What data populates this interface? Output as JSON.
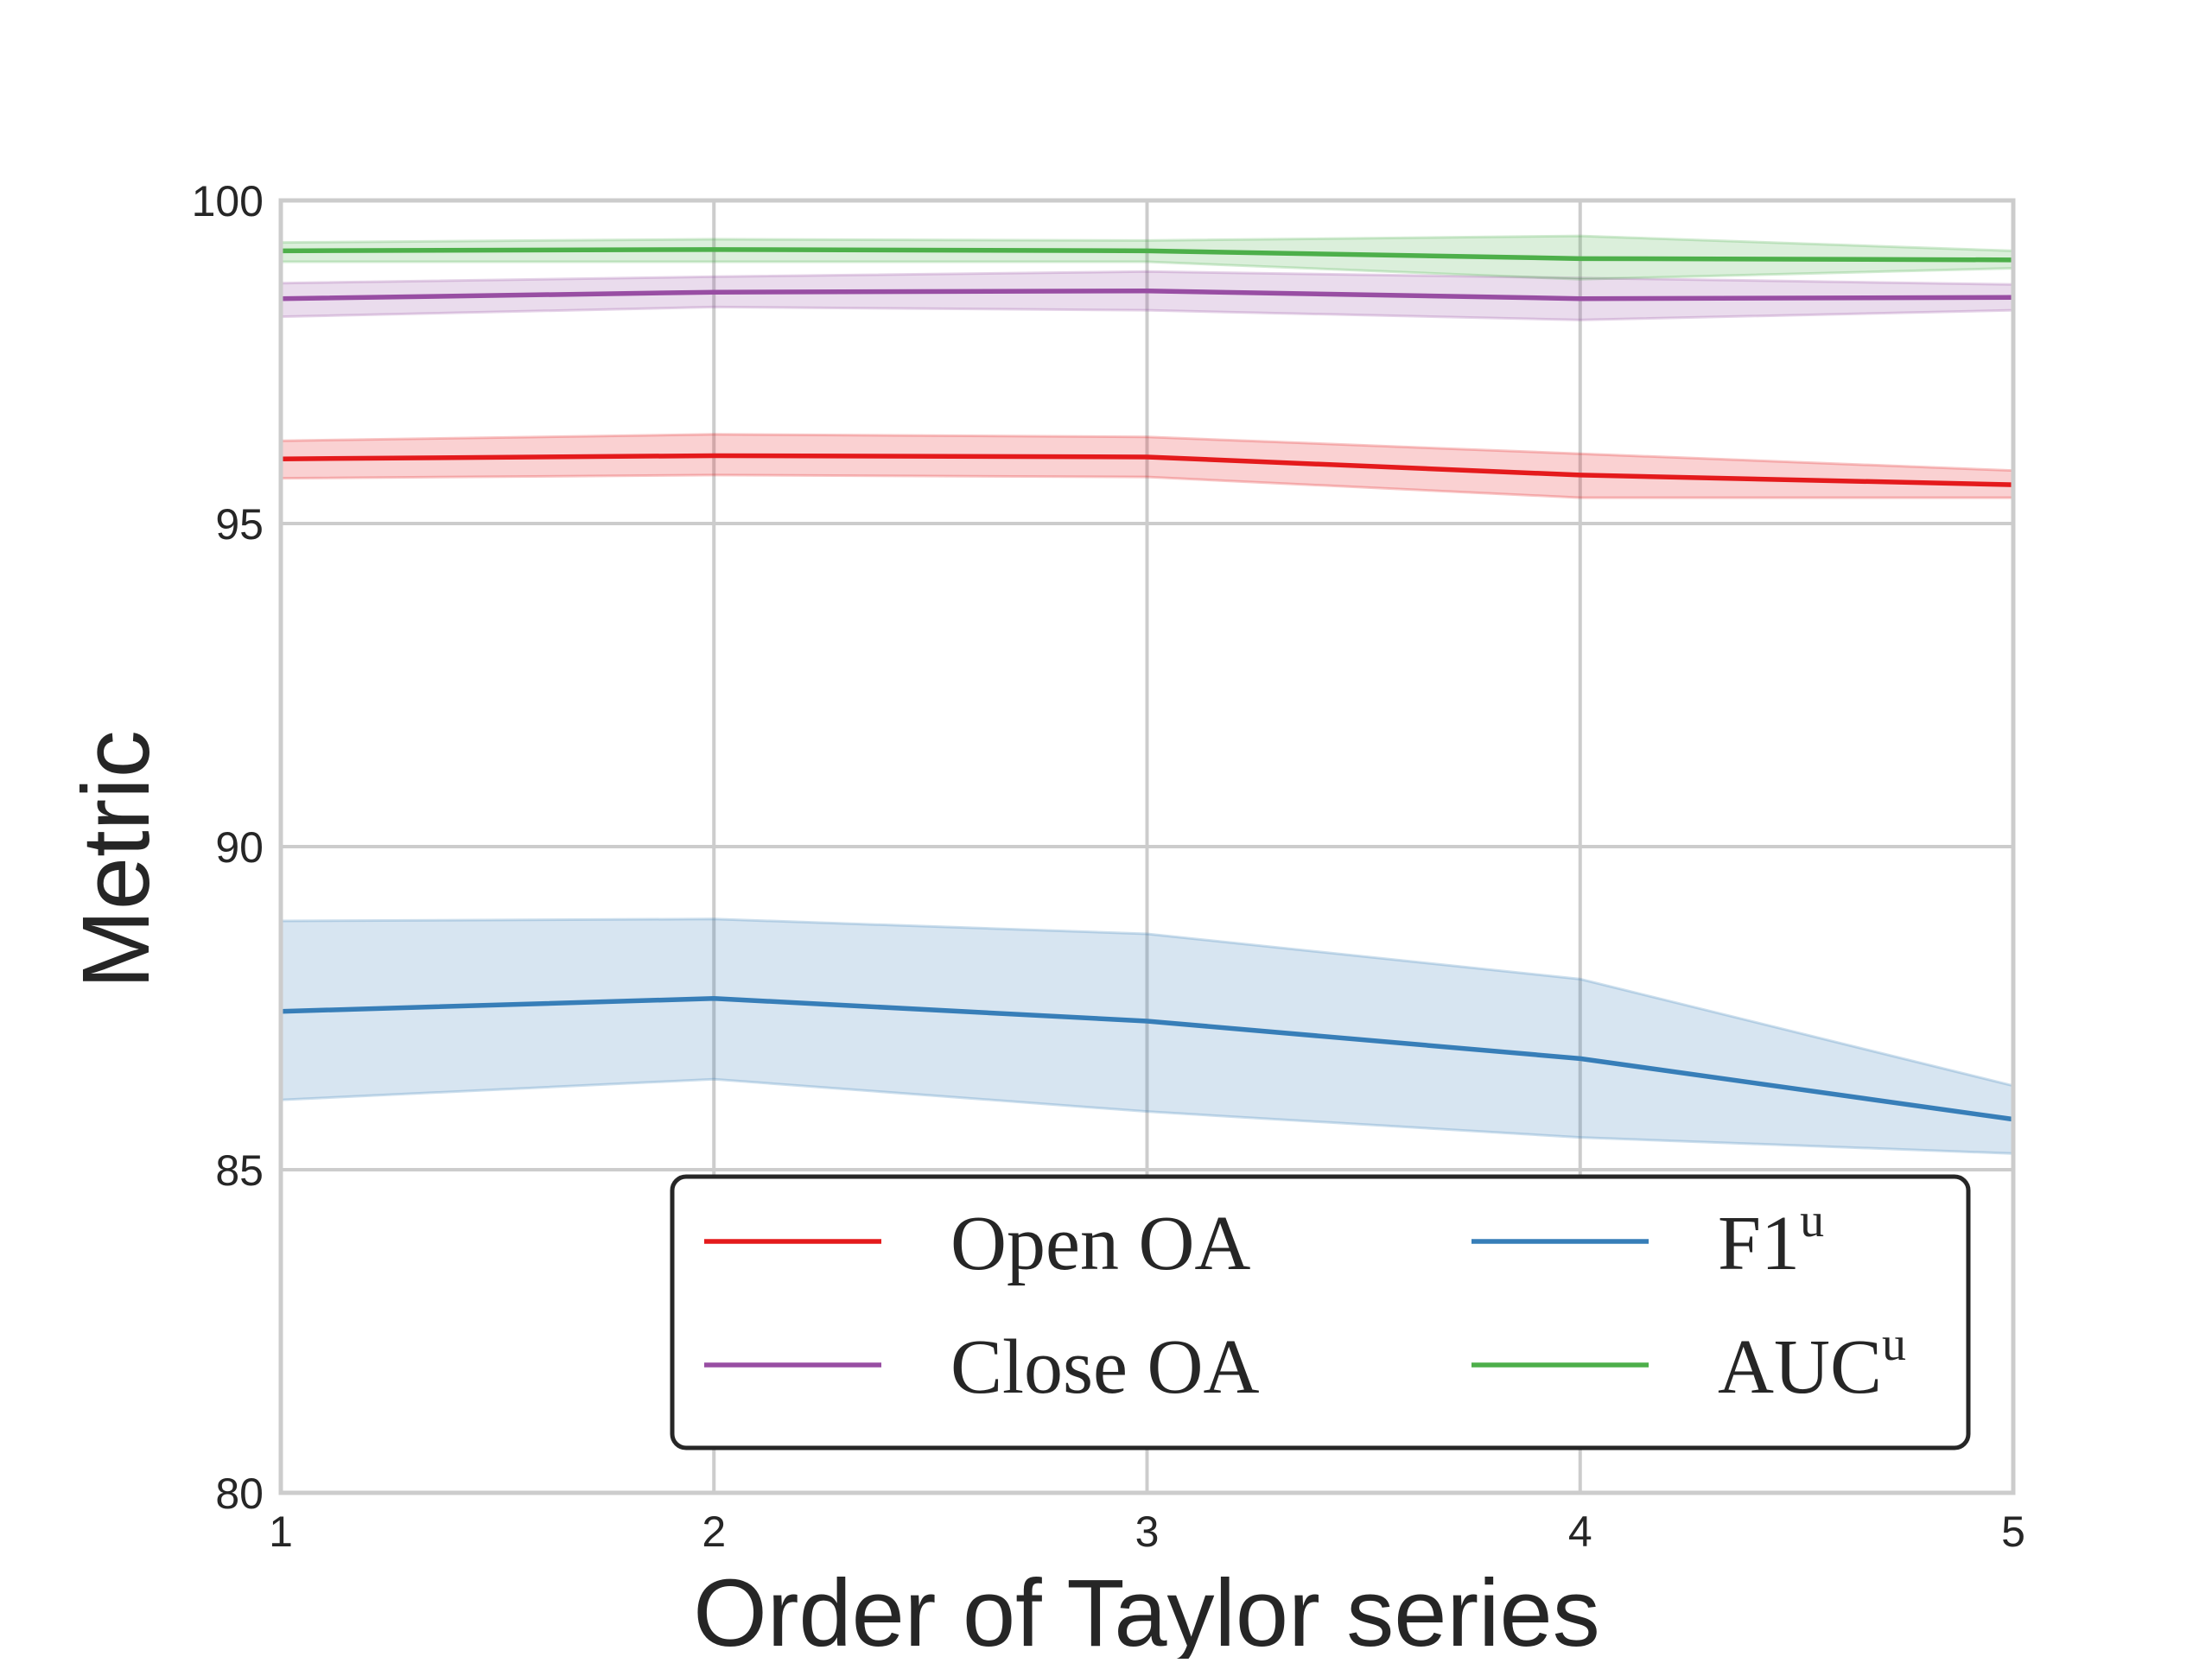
{
  "chart_data": {
    "type": "line",
    "xlabel": "Order of Taylor series",
    "ylabel": "Metric",
    "x": [
      1,
      2,
      3,
      4,
      5
    ],
    "xticks": [
      "1",
      "2",
      "3",
      "4",
      "5"
    ],
    "xlim": [
      1,
      5
    ],
    "ylim": [
      80,
      100
    ],
    "yticks": [
      "80",
      "85",
      "90",
      "95",
      "100"
    ],
    "grid": true,
    "legend_position": "lower-right",
    "legend_columns": 2,
    "series": [
      {
        "name": "Open OA",
        "name_main": "Open OA",
        "name_sup": "",
        "color": "#e41a1c",
        "values": [
          96.0,
          96.05,
          96.03,
          95.75,
          95.6
        ],
        "lower": [
          95.7,
          95.75,
          95.72,
          95.4,
          95.4
        ],
        "upper": [
          96.28,
          96.38,
          96.34,
          96.08,
          95.82
        ]
      },
      {
        "name": "Close OA",
        "name_main": "Close OA",
        "name_sup": "",
        "color": "#984ea3",
        "values": [
          98.48,
          98.58,
          98.6,
          98.48,
          98.5
        ],
        "lower": [
          98.2,
          98.35,
          98.3,
          98.15,
          98.3
        ],
        "upper": [
          98.72,
          98.82,
          98.9,
          98.8,
          98.7
        ]
      },
      {
        "name": "F1u",
        "name_main": "F1",
        "name_sup": "u",
        "color": "#377eb8",
        "values": [
          87.45,
          87.65,
          87.3,
          86.72,
          85.78
        ],
        "lower": [
          86.08,
          86.4,
          85.9,
          85.5,
          85.25
        ],
        "upper": [
          88.85,
          88.88,
          88.65,
          87.95,
          86.3
        ]
      },
      {
        "name": "AUCu",
        "name_main": "AUC",
        "name_sup": "u",
        "color": "#4daf4a",
        "values": [
          99.22,
          99.24,
          99.22,
          99.1,
          99.08
        ],
        "lower": [
          99.05,
          99.05,
          99.05,
          98.78,
          98.95
        ],
        "upper": [
          99.35,
          99.4,
          99.38,
          99.45,
          99.22
        ]
      }
    ]
  }
}
